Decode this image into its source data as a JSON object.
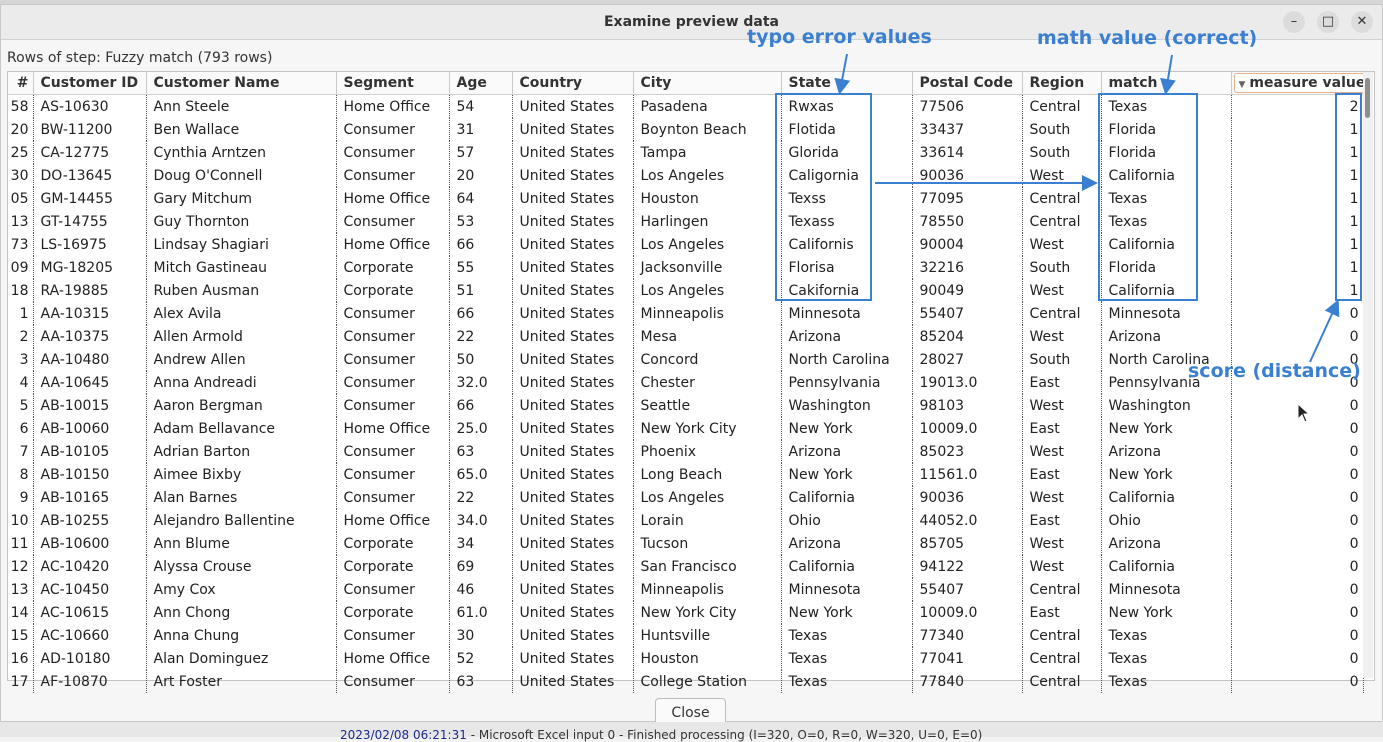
{
  "window": {
    "title": "Examine preview data",
    "minimize_glyph": "–",
    "maximize_glyph": "□",
    "close_glyph": "✕"
  },
  "rows_label": "Rows of step: Fuzzy match (793 rows)",
  "table": {
    "columns": [
      "#",
      "Customer ID",
      "Customer Name",
      "Segment",
      "Age",
      "Country",
      "City",
      "State",
      "Postal Code",
      "Region",
      "match",
      "measure value"
    ],
    "rows": [
      [
        "58",
        "AS-10630",
        "Ann Steele",
        "Home Office",
        "54",
        "United States",
        "Pasadena",
        "Rwxas",
        "77506",
        "Central",
        "Texas",
        "2"
      ],
      [
        "20",
        "BW-11200",
        "Ben Wallace",
        "Consumer",
        "31",
        "United States",
        "Boynton Beach",
        "Flotida",
        "33437",
        "South",
        "Florida",
        "1"
      ],
      [
        "25",
        "CA-12775",
        "Cynthia Arntzen",
        "Consumer",
        "57",
        "United States",
        "Tampa",
        "Glorida",
        "33614",
        "South",
        "Florida",
        "1"
      ],
      [
        "30",
        "DO-13645",
        "Doug O'Connell",
        "Consumer",
        "20",
        "United States",
        "Los Angeles",
        "Caligornia",
        "90036",
        "West",
        "California",
        "1"
      ],
      [
        "05",
        "GM-14455",
        "Gary Mitchum",
        "Home Office",
        "64",
        "United States",
        "Houston",
        "Texss",
        "77095",
        "Central",
        "Texas",
        "1"
      ],
      [
        "13",
        "GT-14755",
        "Guy Thornton",
        "Consumer",
        "53",
        "United States",
        "Harlingen",
        "Texass",
        "78550",
        "Central",
        "Texas",
        "1"
      ],
      [
        "73",
        "LS-16975",
        "Lindsay Shagiari",
        "Home Office",
        "66",
        "United States",
        "Los Angeles",
        "Californis",
        "90004",
        "West",
        "California",
        "1"
      ],
      [
        "09",
        "MG-18205",
        "Mitch Gastineau",
        "Corporate",
        "55",
        "United States",
        "Jacksonville",
        "Florisa",
        "32216",
        "South",
        "Florida",
        "1"
      ],
      [
        "18",
        "RA-19885",
        "Ruben Ausman",
        "Corporate",
        "51",
        "United States",
        "Los Angeles",
        "Cakifornia",
        "90049",
        "West",
        "California",
        "1"
      ],
      [
        "1",
        "AA-10315",
        "Alex Avila",
        "Consumer",
        "66",
        "United States",
        "Minneapolis",
        "Minnesota",
        "55407",
        "Central",
        "Minnesota",
        "0"
      ],
      [
        "2",
        "AA-10375",
        "Allen Armold",
        "Consumer",
        "22",
        "United States",
        "Mesa",
        "Arizona",
        "85204",
        "West",
        "Arizona",
        "0"
      ],
      [
        "3",
        "AA-10480",
        "Andrew Allen",
        "Consumer",
        "50",
        "United States",
        "Concord",
        "North Carolina",
        "28027",
        "South",
        "North Carolina",
        "0"
      ],
      [
        "4",
        "AA-10645",
        "Anna Andreadi",
        "Consumer",
        "32.0",
        "United States",
        "Chester",
        "Pennsylvania",
        "19013.0",
        "East",
        "Pennsylvania",
        "0"
      ],
      [
        "5",
        "AB-10015",
        "Aaron Bergman",
        "Consumer",
        "66",
        "United States",
        "Seattle",
        "Washington",
        "98103",
        "West",
        "Washington",
        "0"
      ],
      [
        "6",
        "AB-10060",
        "Adam Bellavance",
        "Home Office",
        "25.0",
        "United States",
        "New York City",
        "New York",
        "10009.0",
        "East",
        "New York",
        "0"
      ],
      [
        "7",
        "AB-10105",
        "Adrian Barton",
        "Consumer",
        "63",
        "United States",
        "Phoenix",
        "Arizona",
        "85023",
        "West",
        "Arizona",
        "0"
      ],
      [
        "8",
        "AB-10150",
        "Aimee Bixby",
        "Consumer",
        "65.0",
        "United States",
        "Long Beach",
        "New York",
        "11561.0",
        "East",
        "New York",
        "0"
      ],
      [
        "9",
        "AB-10165",
        "Alan Barnes",
        "Consumer",
        "22",
        "United States",
        "Los Angeles",
        "California",
        "90036",
        "West",
        "California",
        "0"
      ],
      [
        "10",
        "AB-10255",
        "Alejandro Ballentine",
        "Home Office",
        "34.0",
        "United States",
        "Lorain",
        "Ohio",
        "44052.0",
        "East",
        "Ohio",
        "0"
      ],
      [
        "11",
        "AB-10600",
        "Ann Blume",
        "Corporate",
        "34",
        "United States",
        "Tucson",
        "Arizona",
        "85705",
        "West",
        "Arizona",
        "0"
      ],
      [
        "12",
        "AC-10420",
        "Alyssa Crouse",
        "Corporate",
        "69",
        "United States",
        "San Francisco",
        "California",
        "94122",
        "West",
        "California",
        "0"
      ],
      [
        "13",
        "AC-10450",
        "Amy Cox",
        "Consumer",
        "46",
        "United States",
        "Minneapolis",
        "Minnesota",
        "55407",
        "Central",
        "Minnesota",
        "0"
      ],
      [
        "14",
        "AC-10615",
        "Ann Chong",
        "Corporate",
        "61.0",
        "United States",
        "New York City",
        "New York",
        "10009.0",
        "East",
        "New York",
        "0"
      ],
      [
        "15",
        "AC-10660",
        "Anna Chung",
        "Consumer",
        "30",
        "United States",
        "Huntsville",
        "Texas",
        "77340",
        "Central",
        "Texas",
        "0"
      ],
      [
        "16",
        "AD-10180",
        "Alan Dominguez",
        "Home Office",
        "52",
        "United States",
        "Houston",
        "Texas",
        "77041",
        "Central",
        "Texas",
        "0"
      ],
      [
        "17",
        "AF-10870",
        "Art Foster",
        "Consumer",
        "63",
        "United States",
        "College Station",
        "Texas",
        "77840",
        "Central",
        "Texas",
        "0"
      ]
    ]
  },
  "annotations": {
    "typo": "typo error values",
    "match": "math value (correct)",
    "score": "score (distance)",
    "color": "#3a7fd0"
  },
  "close_label": "Close",
  "background_log": {
    "timestamp": "2023/02/08 06:21:31",
    "message": " - Microsoft Excel input 0 - Finished processing (I=320, O=0, R=0, W=320, U=0, E=0)"
  }
}
